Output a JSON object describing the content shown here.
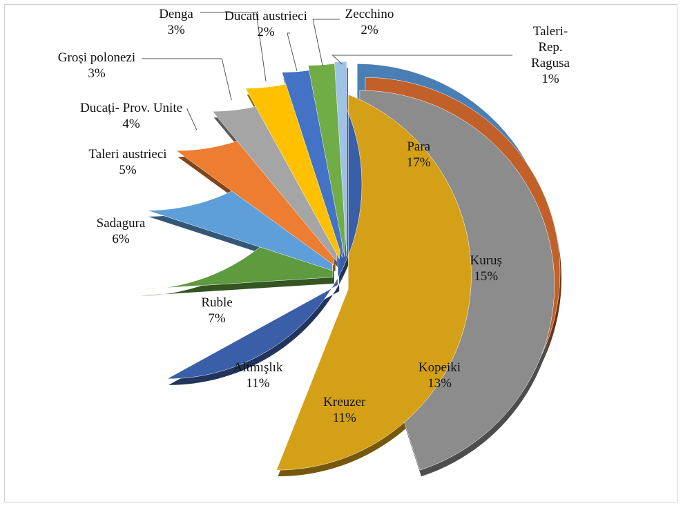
{
  "chart_data": {
    "type": "pie",
    "categories": [
      "Para",
      "Kuruș",
      "Kopeiki",
      "Kreuzer",
      "Altmışlık",
      "Ruble",
      "Sadagura",
      "Taleri austrieci",
      "Ducați- Prov. Unite",
      "Groși polonezi",
      "Denga",
      "Ducati austrieci",
      "Zecchino",
      "Taleri-Rep. Ragusa"
    ],
    "values": [
      17,
      15,
      13,
      11,
      11,
      7,
      6,
      5,
      4,
      3,
      3,
      2,
      2,
      1
    ],
    "value_labels": [
      "17%",
      "15%",
      "13%",
      "11%",
      "11%",
      "7%",
      "6%",
      "5%",
      "4%",
      "3%",
      "3%",
      "2%",
      "2%",
      "1%"
    ],
    "colors": [
      "#4a7fb5",
      "#c2602a",
      "#8c8c8c",
      "#d4a017",
      "#3a5fa8",
      "#5e9a3e",
      "#5f9fd9",
      "#ed7d31",
      "#a5a5a5",
      "#ffc000",
      "#4472c4",
      "#70ad47",
      "#9dc3e6",
      "#f4b183"
    ]
  }
}
